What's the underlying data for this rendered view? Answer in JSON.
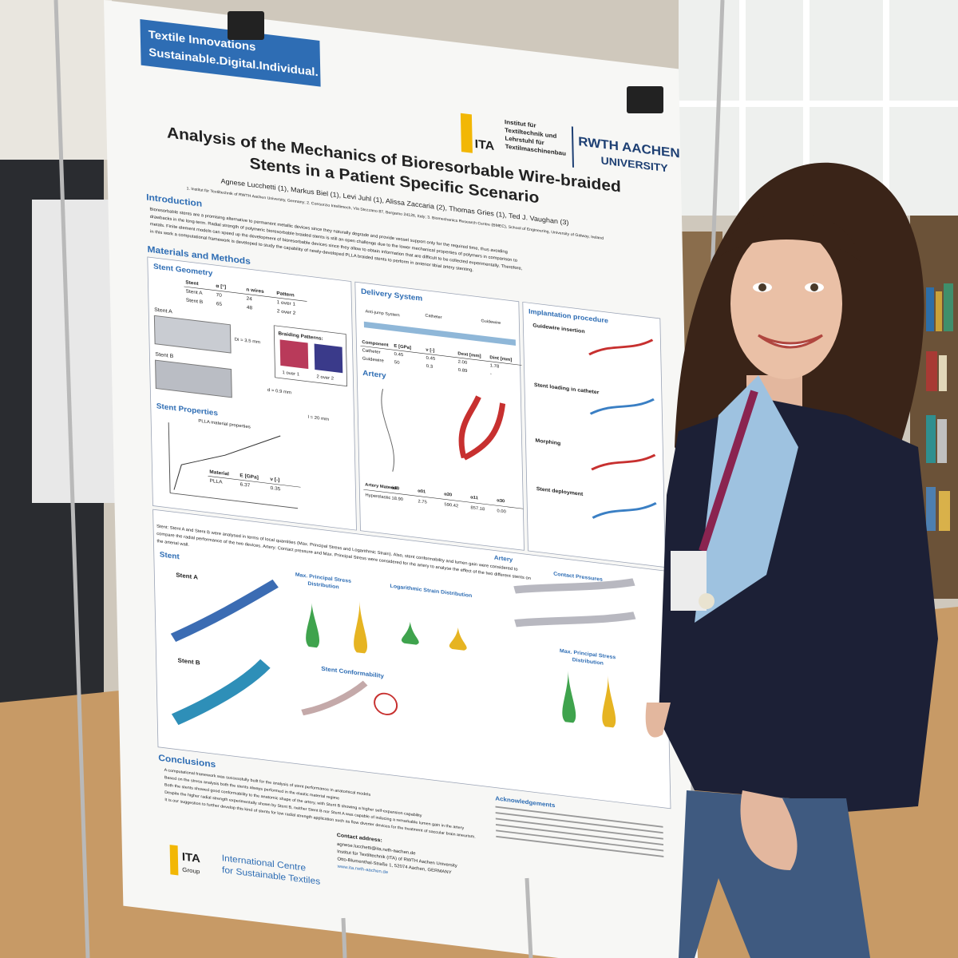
{
  "poster": {
    "banner": [
      "Textile Innovations",
      "Sustainable.Digital.Individual."
    ],
    "logos": {
      "ita": "ITA",
      "ita_name": [
        "Institut für",
        "Textiltechnik und",
        "Lehrstuhl für",
        "Textilmaschinenbau"
      ],
      "rwth": "RWTH AACHEN",
      "rwth_sub": "UNIVERSITY"
    },
    "title": [
      "Analysis of the Mechanics of Bioresorbable Wire-braided",
      "Stents in a Patient Specific Scenario"
    ],
    "authors": "Agnese Lucchetti (1), Markus Biel (1), Levi Juhl (1), Alissa Zaccaria (2), Thomas Gries (1), Ted J. Vaughan (3)",
    "affiliations": "1. Institut für Textiltechnik of RWTH Aachen University, Germany; 2. Consorzio Intellimech, Via Stezzano 87, Bergamo 24126, Italy; 3. Biomechanics Research Centre (BMEC), School of Engineering, University of Galway, Ireland",
    "introduction": {
      "heading": "Introduction",
      "lines": [
        "Bioresorbable stents are a promising alternative to permanent metallic devices since they naturally degrade and provide vessel support only for the required time, thus avoiding",
        "drawbacks in the long-term. Radial strength of polymeric bioresorbable braided stents is still an open challenge due to the lower mechanical properties of polymers in comparison to",
        "metals. Finite element models can speed up the development of bioresorbable devices since they allow to obtain information that are difficult to be collected experimentally. Therefore,",
        "in this work a computational framework is developed to study the capability of newly-developed PLLA braided stents to perform in anterior tibial artery stenting."
      ]
    },
    "methods": {
      "heading": "Materials and Methods",
      "stent_geometry": {
        "heading": "Stent Geometry",
        "table": {
          "header": [
            "Stent",
            "α [°]",
            "n wires",
            "Pattern"
          ],
          "rows": [
            [
              "Stent A",
              "70",
              "24",
              "1 over 1"
            ],
            [
              "Stent B",
              "65",
              "48",
              "2 over 2"
            ]
          ]
        },
        "stent_a": "Stent A",
        "stent_b": "Stent B",
        "braiding": "Braiding Patterns:",
        "patterns": [
          "1 over 1",
          "2 over 2"
        ],
        "dims": [
          "Di = 3.5 mm",
          "d = 0.9 mm",
          "l = 20 mm"
        ]
      },
      "stent_properties": {
        "heading": "Stent Properties",
        "plot_title": "PLLA material properties",
        "table": {
          "header": [
            "Material",
            "E [GPa]",
            "ν [-]"
          ],
          "rows": [
            [
              "PLLA",
              "6.37",
              "0.35"
            ]
          ]
        }
      },
      "delivery": {
        "heading": "Delivery System",
        "labels": [
          "Anti-jump System",
          "Catheter",
          "Guidewire"
        ],
        "table": {
          "header": [
            "Component",
            "E [GPa]",
            "ν [-]",
            "Dext [mm]",
            "Dint [mm]"
          ],
          "rows": [
            [
              "Catheter",
              "0.45",
              "0.45",
              "2.00",
              "1.78"
            ],
            [
              "Guidewire",
              "50",
              "0.3",
              "0.89",
              "-"
            ]
          ]
        }
      },
      "artery": {
        "heading": "Artery",
        "table": {
          "header": [
            "Artery Material",
            "α10",
            "α01",
            "α20",
            "α11",
            "α30"
          ],
          "rows": [
            [
              "Hyperelastic",
              "18.90",
              "2.75",
              "590.42",
              "857.18",
              "0.00"
            ]
          ]
        }
      },
      "implantation": {
        "heading": "Implantation procedure",
        "steps": [
          "Guidewire insertion",
          "Stent loading in catheter",
          "Morphing",
          "Stent deployment"
        ]
      }
    },
    "results": {
      "heading": "Results",
      "lines": [
        "Stent: Stent A and Stent B were analysed in terms of local quantities (Max. Principal Stress and Logarithmic Strain). Also, stent conformability and lumen gain were considered to",
        "compare the radial performance of the two devices. Artery: Contact pressure and Max. Principal Stress were considered for the artery to analyse the effect of the two different stents on",
        "the arterial wall."
      ],
      "stent": "Stent",
      "stent_a": "Stent A",
      "stent_b": "Stent B",
      "max_stress": [
        "Max. Principal Stress",
        "Distribution"
      ],
      "log_strain": "Logarithmic Strain Distribution",
      "conformability": "Stent Conformability",
      "artery": "Artery",
      "contact": "Contact Pressures",
      "artery_stress": [
        "Max. Principal Stress",
        "Distribution"
      ]
    },
    "conclusions": {
      "heading": "Conclusions",
      "bullets": [
        "A computational framework was successfully built for the analysis of stent performance in anatomical models",
        "Based on the stress analysis both the stents always performed in the elastic material regime",
        "Both the stents showed good conformability to the anatomic shape of the artery, with Stent B showing a higher self-expansion capability",
        "Despite the higher radial strength experimentally shown by Stent B, neither Stent B nor Stent A was capable of inducing a remarkable lumen gain in the artery",
        "It is our suggestion to further develop this kind of stents for low radial strength application such as flow diverter devices for the treatment of saccular brain aneurism."
      ]
    },
    "acknowledgements": {
      "heading": "Acknowledgements"
    },
    "contact": {
      "heading": "Contact address:",
      "lines": [
        "agnese.lucchetti@ita.rwth-aachen.de",
        "Institut für Textiltechnik (ITA) of RWTH Aachen University",
        "Otto-Blumenthal-Straße 1, 52074 Aachen, GERMANY",
        "www.ita.rwth-aachen.de"
      ]
    },
    "footer": {
      "logo": "ITA",
      "logo_sub": "Group",
      "lines": [
        "International Centre",
        "for Sustainable Textiles"
      ]
    }
  }
}
